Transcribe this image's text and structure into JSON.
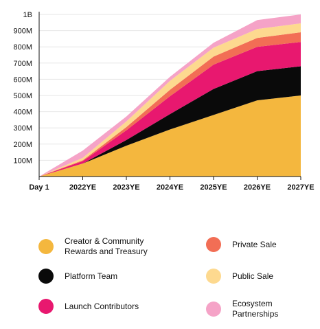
{
  "chart_data": {
    "type": "area",
    "stacked": true,
    "categories": [
      "Day 1",
      "2022YE",
      "2023YE",
      "2024YE",
      "2025YE",
      "2026YE",
      "2027YE"
    ],
    "yticks": [
      "100M",
      "200M",
      "300M",
      "400M",
      "500M",
      "600M",
      "700M",
      "800M",
      "900M",
      "1B"
    ],
    "ylim": [
      0,
      1000
    ],
    "grid": true,
    "legend_position": "bottom",
    "series": [
      {
        "name": "Creator & Community\nRewards and Treasury",
        "color": "#F4B73E",
        "values": [
          0,
          80,
          190,
          290,
          380,
          470,
          500
        ]
      },
      {
        "name": "Platform Team",
        "color": "#0A0A0A",
        "values": [
          0,
          0,
          35,
          95,
          160,
          180,
          180
        ]
      },
      {
        "name": "Launch Contributors",
        "color": "#E8186F",
        "values": [
          0,
          15,
          60,
          110,
          150,
          150,
          150
        ]
      },
      {
        "name": "Private Sale",
        "color": "#F26E55",
        "values": [
          0,
          5,
          20,
          40,
          50,
          55,
          60
        ]
      },
      {
        "name": "Public Sale",
        "color": "#FDD98F",
        "values": [
          0,
          15,
          35,
          55,
          55,
          55,
          55
        ]
      },
      {
        "name": "Ecosystem\nPartnerships",
        "color": "#F5A3C7",
        "values": [
          0,
          45,
          30,
          25,
          30,
          55,
          55
        ]
      }
    ]
  }
}
